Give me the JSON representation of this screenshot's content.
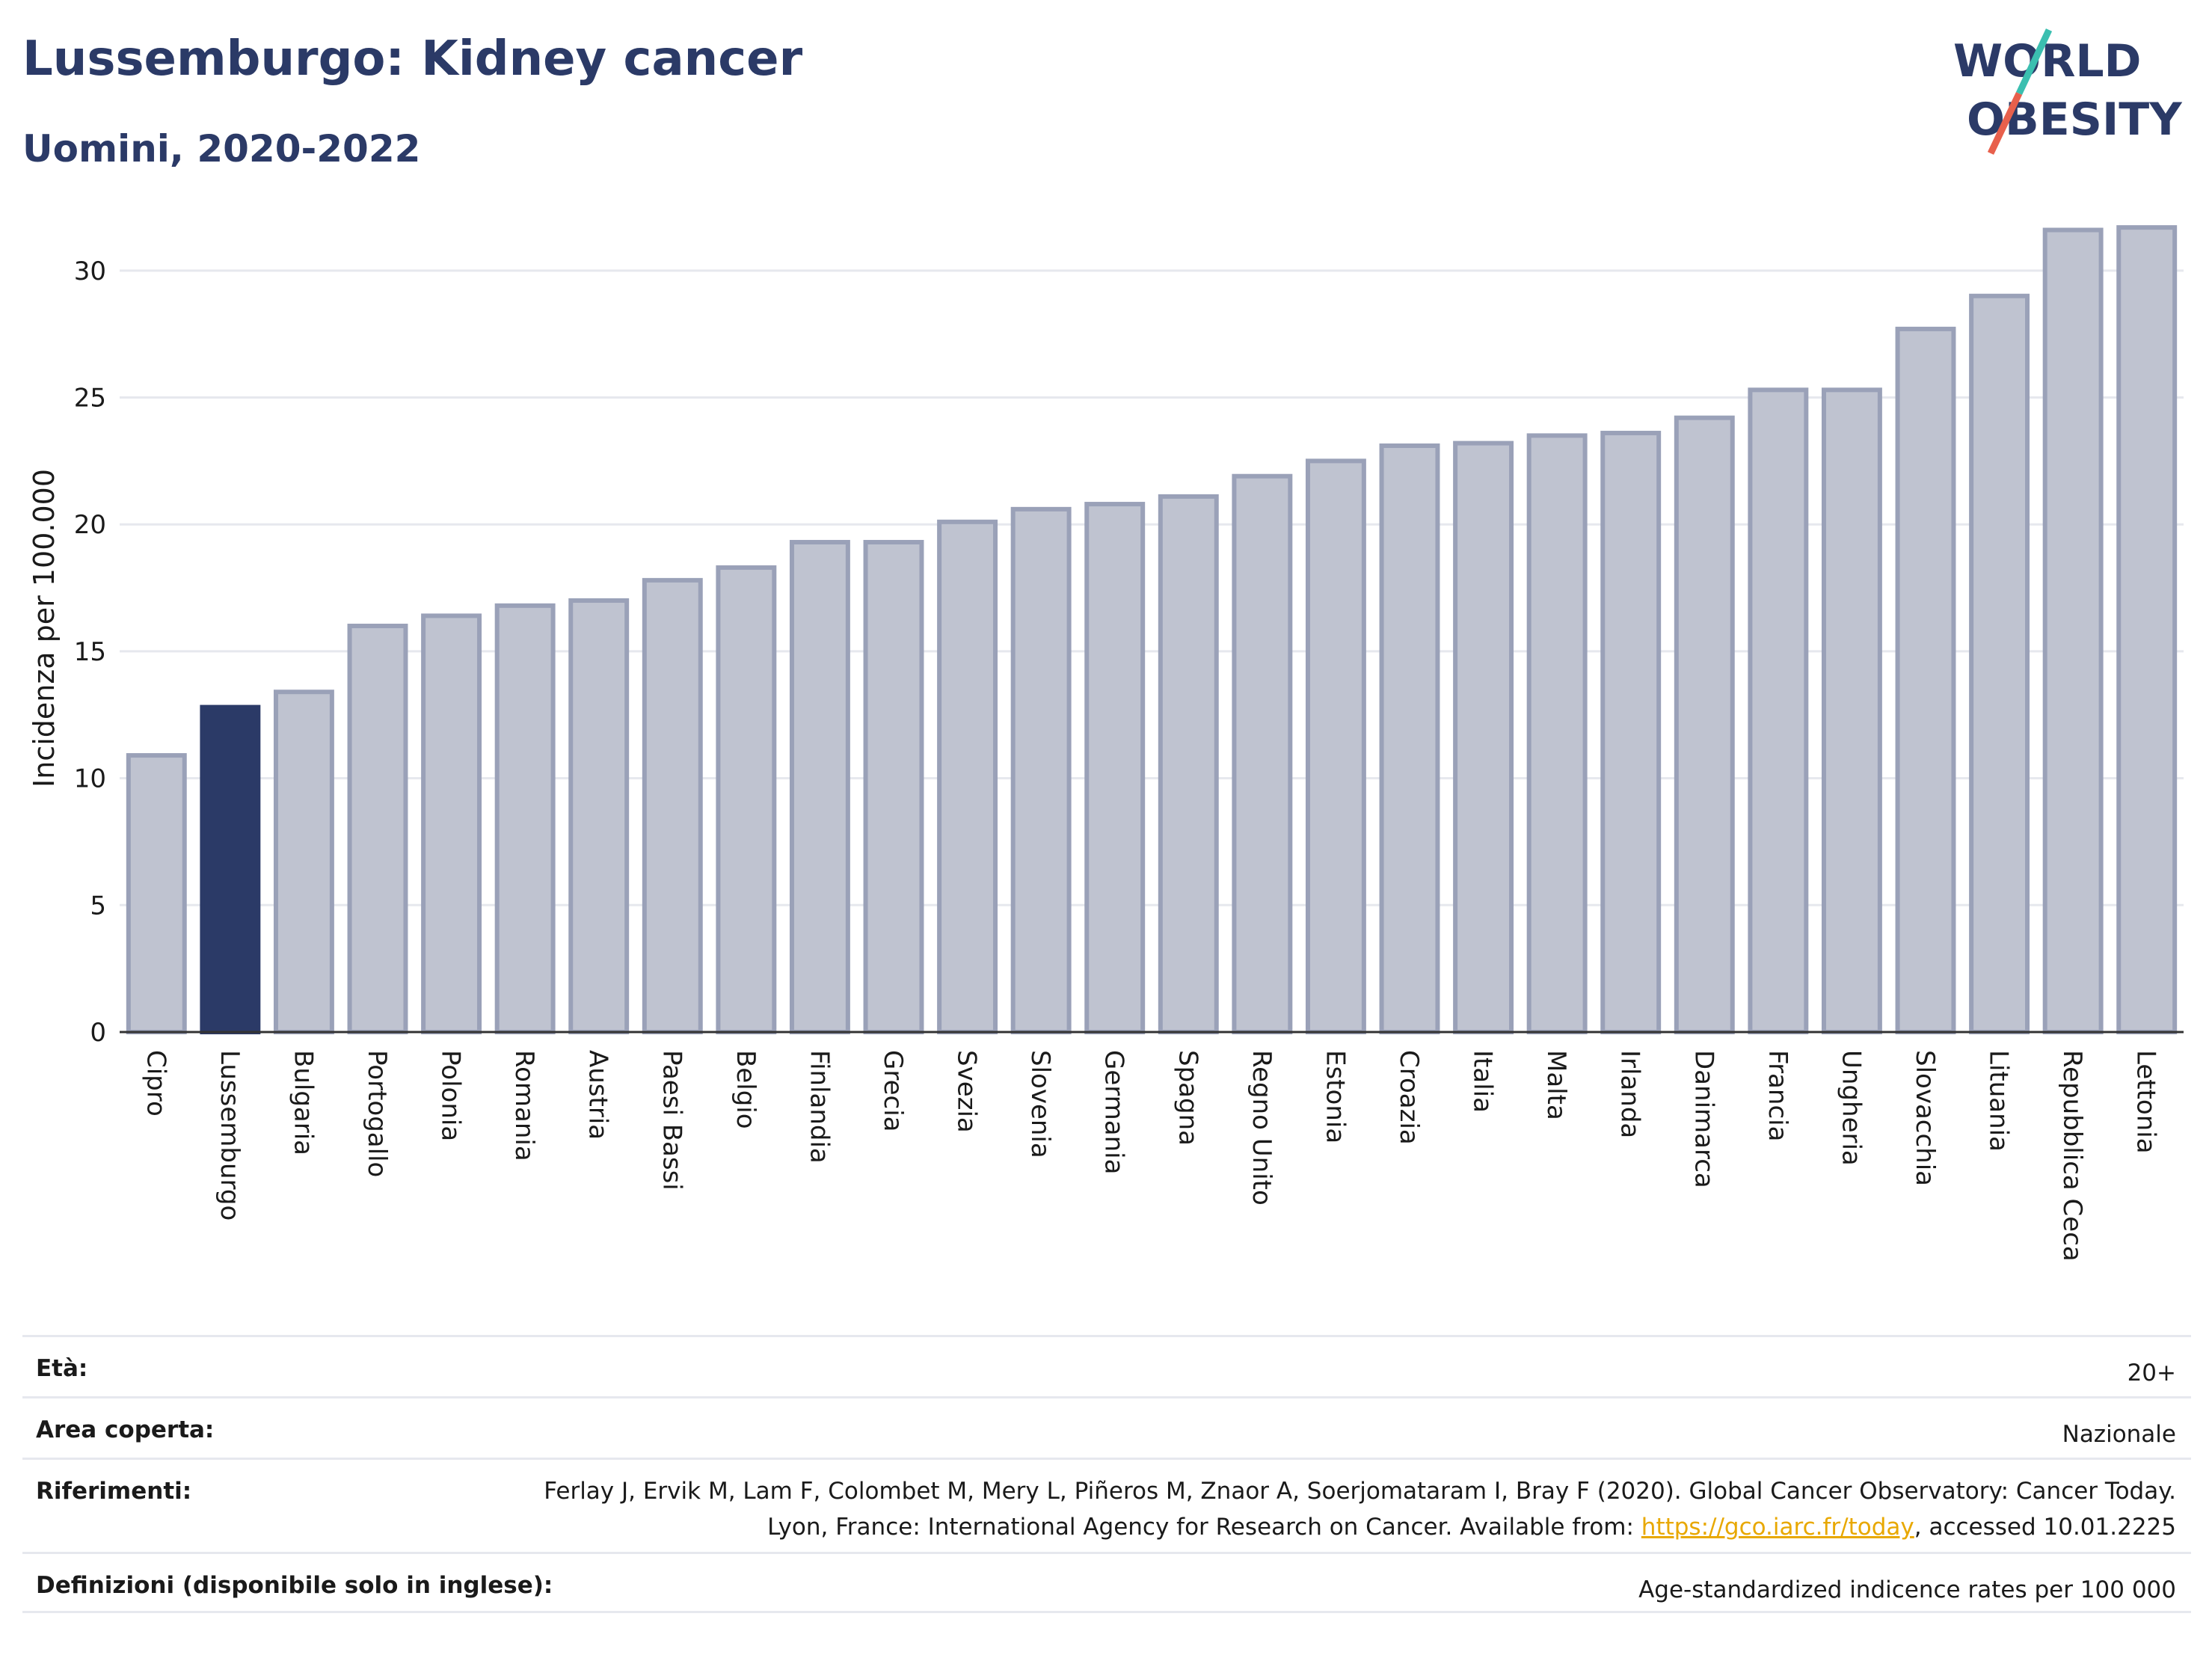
{
  "header": {
    "title": "Lussemburgo: Kidney cancer",
    "subtitle": "Uomini, 2020-2022"
  },
  "logo": {
    "line1": "WORLD",
    "line2": "OBESITY",
    "colors": {
      "text": "#2b3a67",
      "slash_teal": "#3bbfb0",
      "slash_red": "#e8604c"
    }
  },
  "chart_data": {
    "type": "bar",
    "title": "Lussemburgo: Kidney cancer",
    "subtitle": "Uomini, 2020-2022",
    "ylabel": "Incidenza per 100.000",
    "xlabel": "",
    "ylim": [
      0,
      33
    ],
    "yticks": [
      0,
      5,
      10,
      15,
      20,
      25,
      30
    ],
    "grid": true,
    "highlight": "Lussemburgo",
    "colors": {
      "default": "#bfc3d0",
      "default_edge": "#9aa1b8",
      "highlight": "#2b3a67"
    },
    "categories": [
      "Cipro",
      "Lussemburgo",
      "Bulgaria",
      "Portogallo",
      "Polonia",
      "Romania",
      "Austria",
      "Paesi Bassi",
      "Belgio",
      "Finlandia",
      "Grecia",
      "Svezia",
      "Slovenia",
      "Germania",
      "Spagna",
      "Regno Unito",
      "Estonia",
      "Croazia",
      "Italia",
      "Malta",
      "Irlanda",
      "Danimarca",
      "Francia",
      "Ungheria",
      "Slovacchia",
      "Lituania",
      "Repubblica Ceca",
      "Lettonia"
    ],
    "values": [
      10.9,
      12.8,
      13.4,
      16.0,
      16.4,
      16.8,
      17.0,
      17.8,
      18.3,
      19.3,
      19.3,
      20.1,
      20.6,
      20.8,
      21.1,
      21.9,
      22.5,
      23.1,
      23.2,
      23.5,
      23.6,
      24.2,
      25.3,
      25.3,
      27.7,
      29.0,
      31.6,
      31.7
    ]
  },
  "meta": {
    "rows": [
      {
        "label": "Età:",
        "value": "20+"
      },
      {
        "label": "Area coperta:",
        "value": "Nazionale"
      },
      {
        "label": "Riferimenti:",
        "value_pre": "Ferlay J, Ervik M, Lam F, Colombet M, Mery L, Piñeros M, Znaor A, Soerjomataram I, Bray F (2020). Global Cancer Observatory: Cancer Today. Lyon, France: International Agency for Research on Cancer. Available from: ",
        "link": "https://gco.iarc.fr/today",
        "value_post": ", accessed 10.01.2225"
      },
      {
        "label": "Definizioni (disponibile solo in inglese):",
        "value": "Age-standardized indicence rates per 100 000"
      }
    ]
  }
}
